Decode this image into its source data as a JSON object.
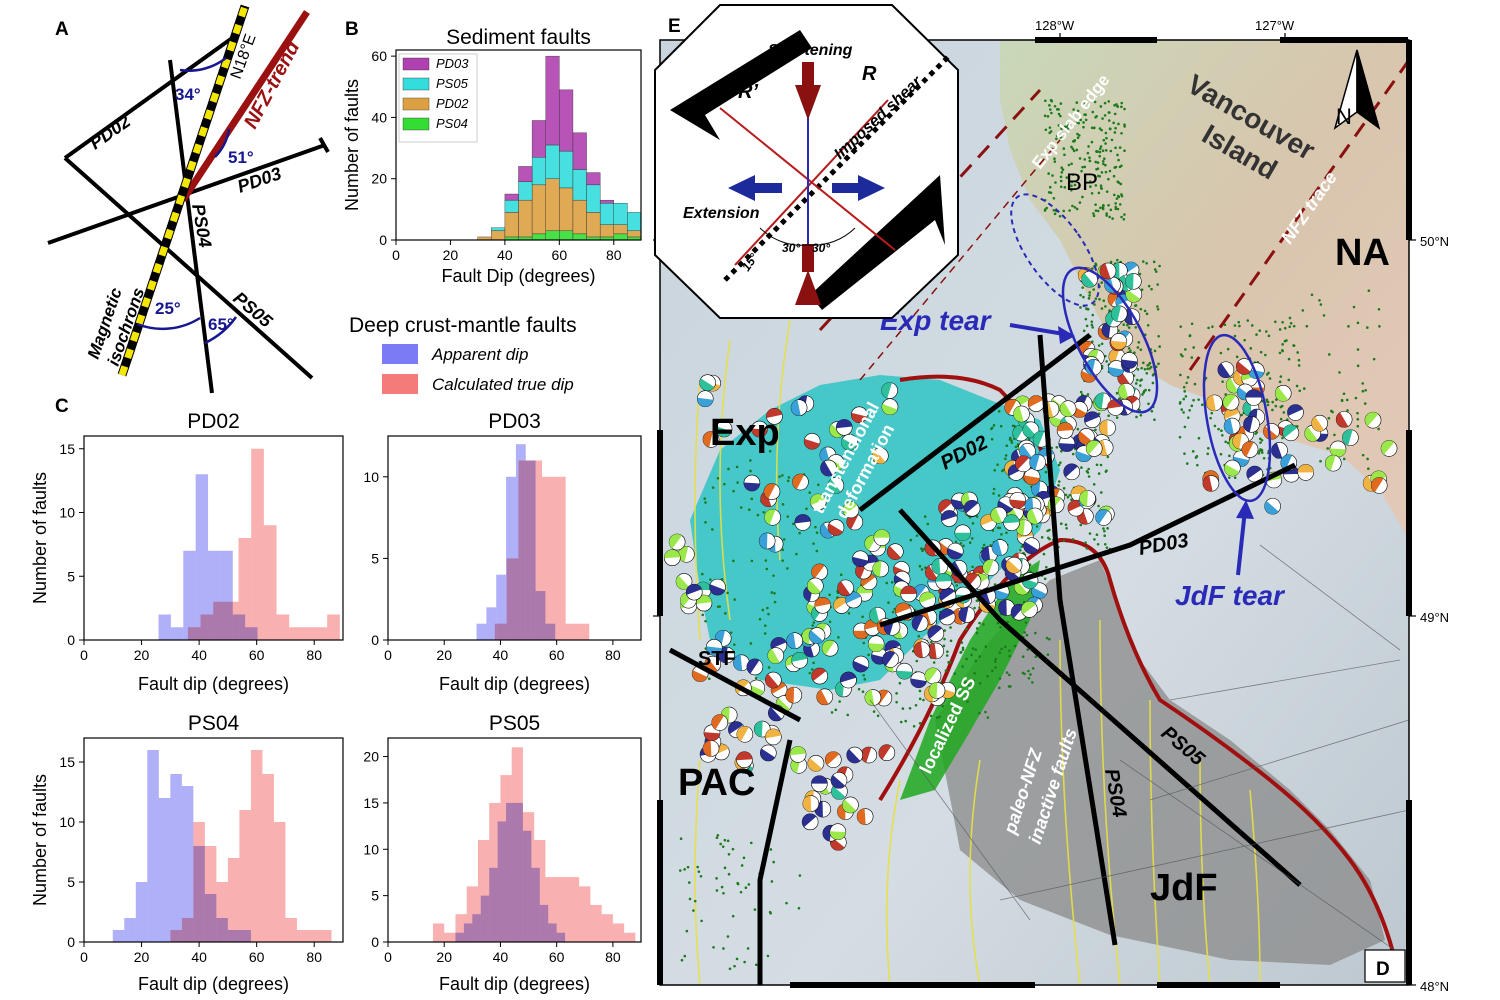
{
  "panel_labels": {
    "a": "A",
    "b": "B",
    "c": "C",
    "e": "E",
    "d": "D"
  },
  "panel_a": {
    "lines": [
      "PD02",
      "PD03",
      "PS04",
      "PS05"
    ],
    "trend": "NFZ-trend",
    "isochrons_line1": "Magnetic",
    "isochrons_line2": "isochrons",
    "north": "N18°E",
    "angles": [
      "34°",
      "51°",
      "25°",
      "65°"
    ]
  },
  "deep_legend": {
    "title": "Deep crust-mantle faults",
    "apparent": "Apparent dip",
    "true": "Calculated true dip",
    "apparent_color": "#7b7bf5",
    "true_color": "#f57b7b"
  },
  "chart_data": [
    {
      "id": "B",
      "type": "bar",
      "title": "Sediment faults",
      "xlabel": "Fault Dip (degrees)",
      "ylabel": "Number of faults",
      "xlim": [
        0,
        90
      ],
      "ylim": [
        0,
        62
      ],
      "xticks": [
        0,
        20,
        40,
        60,
        80
      ],
      "yticks": [
        0,
        20,
        40,
        60
      ],
      "bin_width": 5,
      "stacked": true,
      "bin_starts": [
        30,
        35,
        40,
        45,
        50,
        55,
        60,
        65,
        70,
        75,
        80,
        85
      ],
      "series": [
        {
          "name": "PS04",
          "color": "#33dd33",
          "values": [
            0,
            0,
            1,
            1,
            2,
            3,
            3,
            2,
            1,
            1,
            2,
            1
          ]
        },
        {
          "name": "PD02",
          "color": "#dda040",
          "values": [
            1,
            3,
            8,
            12,
            16,
            17,
            14,
            11,
            8,
            4,
            3,
            2
          ]
        },
        {
          "name": "PS05",
          "color": "#33dddd",
          "values": [
            0,
            1,
            4,
            6,
            9,
            11,
            12,
            10,
            9,
            7,
            7,
            6
          ]
        },
        {
          "name": "PD03",
          "color": "#b040b0",
          "values": [
            0,
            0,
            2,
            5,
            12,
            29,
            20,
            12,
            4,
            1,
            0,
            0
          ]
        }
      ],
      "legend_order": [
        "PD03",
        "PS05",
        "PD02",
        "PS04"
      ]
    },
    {
      "id": "C-PD02",
      "type": "bar",
      "title": "PD02",
      "xlabel": "Fault dip (degrees)",
      "ylabel": "Number of faults",
      "xlim": [
        0,
        90
      ],
      "ylim": [
        0,
        16
      ],
      "xticks": [
        0,
        20,
        40,
        60,
        80
      ],
      "yticks": [
        0,
        5,
        10,
        15
      ],
      "series": [
        {
          "name": "Apparent dip",
          "bin_width": 4.3,
          "bin_starts": [
            25.9,
            30.2,
            34.5,
            38.8,
            43.1,
            47.4,
            51.7,
            56.0
          ],
          "values": [
            2,
            1,
            7,
            13,
            7,
            7,
            2,
            1
          ]
        },
        {
          "name": "Calculated true dip",
          "bin_width": 4.4,
          "bin_starts": [
            36.1,
            40.5,
            44.9,
            49.3,
            53.7,
            58.1,
            62.5,
            66.9,
            71.3,
            75.7,
            80.1,
            84.5
          ],
          "values": [
            1,
            2,
            3,
            3,
            8,
            15,
            9,
            2,
            1,
            1,
            1,
            2
          ]
        }
      ]
    },
    {
      "id": "C-PD03",
      "type": "bar",
      "title": "PD03",
      "xlabel": "Fault dip (degrees)",
      "ylabel": "",
      "xlim": [
        0,
        90
      ],
      "ylim": [
        0,
        12.5
      ],
      "xticks": [
        0,
        20,
        40,
        60,
        80
      ],
      "yticks": [
        0,
        5,
        10
      ],
      "series": [
        {
          "name": "Apparent dip",
          "bin_width": 3.5,
          "bin_starts": [
            31.5,
            35.0,
            38.5,
            42.0,
            45.5,
            49.0,
            52.5,
            56.0
          ],
          "values": [
            1,
            2,
            4,
            10,
            12,
            11,
            3,
            1
          ]
        },
        {
          "name": "Calculated true dip",
          "bin_width": 4.2,
          "bin_starts": [
            38.0,
            42.2,
            46.4,
            50.6,
            54.8,
            59.0,
            63.2,
            67.4
          ],
          "values": [
            1,
            5,
            11,
            11,
            10,
            10,
            1,
            1
          ]
        }
      ]
    },
    {
      "id": "C-PS04",
      "type": "bar",
      "title": "PS04",
      "xlabel": "Fault dip (degrees)",
      "ylabel": "Number of faults",
      "xlim": [
        0,
        90
      ],
      "ylim": [
        0,
        17
      ],
      "xticks": [
        0,
        20,
        40,
        60,
        80
      ],
      "yticks": [
        0,
        5,
        10,
        15
      ],
      "series": [
        {
          "name": "Apparent dip",
          "bin_width": 4.0,
          "bin_starts": [
            10,
            14,
            18,
            22,
            26,
            30,
            34,
            38,
            42,
            46,
            50,
            54
          ],
          "values": [
            1,
            2,
            5,
            16,
            12,
            14,
            13,
            8,
            4,
            2,
            1,
            1
          ]
        },
        {
          "name": "Calculated true dip",
          "bin_width": 4.0,
          "bin_starts": [
            30,
            34,
            38,
            42,
            46,
            50,
            54,
            58,
            62,
            66,
            70,
            74,
            78,
            82
          ],
          "values": [
            1,
            2,
            10,
            8,
            5,
            7,
            11,
            16,
            14,
            10,
            2,
            1,
            1,
            1
          ]
        }
      ]
    },
    {
      "id": "C-PS05",
      "type": "bar",
      "title": "PS05",
      "xlabel": "Fault dip (degrees)",
      "ylabel": "",
      "xlim": [
        0,
        90
      ],
      "ylim": [
        0,
        22
      ],
      "xticks": [
        0,
        20,
        40,
        60,
        80
      ],
      "yticks": [
        0,
        5,
        10,
        15,
        20
      ],
      "series": [
        {
          "name": "Apparent dip",
          "bin_width": 3.0,
          "bin_starts": [
            24,
            27,
            30,
            33,
            36,
            39,
            42,
            45,
            48,
            51,
            54,
            57,
            60
          ],
          "values": [
            1,
            2,
            3,
            5,
            8,
            13,
            15,
            15,
            12,
            8,
            4,
            2,
            1
          ]
        },
        {
          "name": "Calculated true dip",
          "bin_width": 4.0,
          "bin_starts": [
            16,
            20,
            24,
            28,
            32,
            36,
            40,
            44,
            48,
            52,
            56,
            60,
            64,
            68,
            72,
            76,
            80,
            84
          ],
          "values": [
            2,
            1,
            3,
            6,
            11,
            15,
            18,
            21,
            14,
            11,
            7,
            7,
            7,
            6,
            4,
            3,
            2,
            1
          ]
        }
      ]
    }
  ],
  "map": {
    "lon_labels": [
      "128°W",
      "127°W"
    ],
    "lat_labels": [
      "50°N",
      "49°N",
      "48°N"
    ],
    "north": "N",
    "plates": {
      "exp": "Exp",
      "na": "NA",
      "pac": "PAC",
      "jdf": "JdF"
    },
    "land_line1": "Vancouver",
    "land_line2": "Island",
    "exp_slab_edge": "Exp slab edge",
    "bp": "BP",
    "nfz_trace": "NFZ trace",
    "exp_tear": "Exp tear",
    "jdf_tear": "JdF tear",
    "transtensional_line1": "transtensional",
    "transtensional_line2": "deformation",
    "localized_ss": "localized SS",
    "paleo_line1": "paleo-NFZ",
    "paleo_line2": "inactive faults",
    "stf": "STF",
    "lines": {
      "pd02": "PD02",
      "pd03": "PD03",
      "ps04": "PS04",
      "ps05": "PS05"
    },
    "inset": {
      "shortening": "Shortening",
      "extension": "Extension",
      "imposed_shear": "Imposed shear",
      "r": "R",
      "r_prime": "R’",
      "a15": "15°",
      "a30a": "30°",
      "a30b": "30°"
    }
  }
}
